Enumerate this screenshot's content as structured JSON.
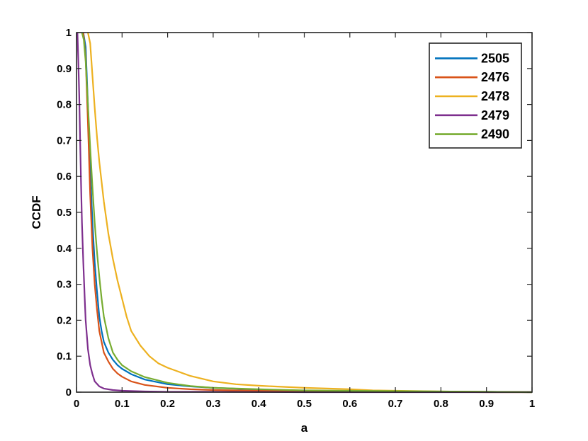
{
  "chart_data": {
    "type": "line",
    "title": "",
    "xlabel": "a",
    "ylabel": "CCDF",
    "xlim": [
      0,
      1
    ],
    "ylim": [
      0,
      1
    ],
    "xticks": [
      "0",
      "0.1",
      "0.2",
      "0.3",
      "0.4",
      "0.5",
      "0.6",
      "0.7",
      "0.8",
      "0.9",
      "1"
    ],
    "yticks": [
      "0",
      "0.1",
      "0.2",
      "0.3",
      "0.4",
      "0.5",
      "0.6",
      "0.7",
      "0.8",
      "0.9",
      "1"
    ],
    "grid": false,
    "legend_position": "top-right",
    "series": [
      {
        "name": "2505",
        "color": "#0072BD",
        "x": [
          0.015,
          0.02,
          0.025,
          0.03,
          0.035,
          0.04,
          0.045,
          0.05,
          0.055,
          0.06,
          0.07,
          0.08,
          0.09,
          0.1,
          0.12,
          0.15,
          0.2,
          0.25,
          0.3,
          0.4,
          0.5,
          0.6,
          0.7,
          0.8,
          0.9,
          1.0
        ],
        "y": [
          1.0,
          0.96,
          0.8,
          0.62,
          0.47,
          0.36,
          0.28,
          0.21,
          0.17,
          0.14,
          0.11,
          0.09,
          0.075,
          0.065,
          0.05,
          0.035,
          0.022,
          0.016,
          0.012,
          0.007,
          0.004,
          0.003,
          0.002,
          0.001,
          0.001,
          0.0
        ]
      },
      {
        "name": "2476",
        "color": "#D95319",
        "x": [
          0.015,
          0.02,
          0.025,
          0.03,
          0.035,
          0.04,
          0.045,
          0.05,
          0.055,
          0.06,
          0.07,
          0.08,
          0.09,
          0.1,
          0.12,
          0.15,
          0.2,
          0.25,
          0.3,
          0.4,
          0.5,
          0.6,
          0.7,
          0.8,
          0.9,
          1.0
        ],
        "y": [
          1.0,
          0.93,
          0.75,
          0.55,
          0.4,
          0.3,
          0.23,
          0.17,
          0.14,
          0.11,
          0.085,
          0.065,
          0.052,
          0.043,
          0.03,
          0.02,
          0.012,
          0.008,
          0.006,
          0.004,
          0.003,
          0.002,
          0.001,
          0.001,
          0.0,
          0.0
        ]
      },
      {
        "name": "2478",
        "color": "#EDB120",
        "x": [
          0.025,
          0.03,
          0.035,
          0.04,
          0.045,
          0.05,
          0.06,
          0.07,
          0.08,
          0.09,
          0.1,
          0.11,
          0.12,
          0.14,
          0.16,
          0.18,
          0.2,
          0.25,
          0.3,
          0.35,
          0.4,
          0.45,
          0.5,
          0.55,
          0.6,
          0.65,
          0.7,
          0.8,
          0.9,
          1.0
        ],
        "y": [
          1.0,
          0.97,
          0.88,
          0.79,
          0.71,
          0.64,
          0.53,
          0.44,
          0.37,
          0.31,
          0.26,
          0.21,
          0.17,
          0.13,
          0.1,
          0.08,
          0.068,
          0.045,
          0.03,
          0.022,
          0.018,
          0.015,
          0.012,
          0.01,
          0.008,
          0.005,
          0.004,
          0.002,
          0.001,
          0.0
        ]
      },
      {
        "name": "2479",
        "color": "#7E2F8E",
        "x": [
          0.002,
          0.004,
          0.006,
          0.008,
          0.01,
          0.012,
          0.015,
          0.018,
          0.02,
          0.025,
          0.03,
          0.035,
          0.04,
          0.05,
          0.06,
          0.08,
          0.1,
          0.15,
          0.2,
          0.3,
          0.5,
          1.0
        ],
        "y": [
          1.0,
          0.92,
          0.82,
          0.7,
          0.58,
          0.47,
          0.36,
          0.26,
          0.2,
          0.12,
          0.075,
          0.05,
          0.03,
          0.016,
          0.01,
          0.006,
          0.004,
          0.002,
          0.001,
          0.001,
          0.0,
          0.0
        ]
      },
      {
        "name": "2490",
        "color": "#77AC30",
        "x": [
          0.012,
          0.016,
          0.02,
          0.025,
          0.03,
          0.035,
          0.04,
          0.045,
          0.05,
          0.055,
          0.06,
          0.07,
          0.08,
          0.09,
          0.1,
          0.12,
          0.15,
          0.2,
          0.25,
          0.3,
          0.4,
          0.5,
          0.6,
          0.7,
          0.8,
          0.9,
          1.0
        ],
        "y": [
          1.0,
          0.98,
          0.92,
          0.8,
          0.68,
          0.57,
          0.47,
          0.39,
          0.32,
          0.26,
          0.21,
          0.15,
          0.11,
          0.09,
          0.075,
          0.058,
          0.042,
          0.026,
          0.017,
          0.012,
          0.008,
          0.005,
          0.004,
          0.003,
          0.002,
          0.001,
          0.0
        ]
      }
    ]
  }
}
